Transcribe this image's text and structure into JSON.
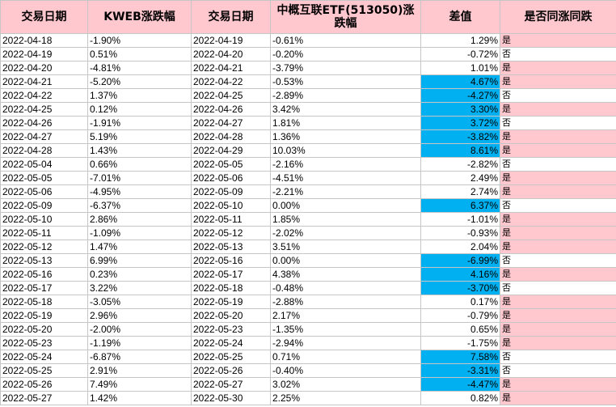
{
  "columns": [
    "交易日期",
    "KWEB涨跌幅",
    "交易日期",
    "中概互联ETF(513050)涨跌幅",
    "差值",
    "是否同涨同跌"
  ],
  "colors": {
    "header_fill": "#ffc7ce",
    "highlight_blue": "#00b0f0",
    "pink_fill": "#ffc7ce",
    "grid": "#c6c6c6"
  },
  "rows": [
    {
      "d1": "2022-04-18",
      "kweb": "-1.90%",
      "d2": "2022-04-19",
      "etf": "-0.61%",
      "diff": "1.29%",
      "same": "是",
      "hl": false
    },
    {
      "d1": "2022-04-19",
      "kweb": "0.51%",
      "d2": "2022-04-20",
      "etf": "-0.20%",
      "diff": "-0.72%",
      "same": "否",
      "hl": false
    },
    {
      "d1": "2022-04-20",
      "kweb": "-4.81%",
      "d2": "2022-04-21",
      "etf": "-3.79%",
      "diff": "1.01%",
      "same": "是",
      "hl": false
    },
    {
      "d1": "2022-04-21",
      "kweb": "-5.20%",
      "d2": "2022-04-22",
      "etf": "-0.53%",
      "diff": "4.67%",
      "same": "是",
      "hl": true
    },
    {
      "d1": "2022-04-22",
      "kweb": "1.37%",
      "d2": "2022-04-25",
      "etf": "-2.89%",
      "diff": "-4.27%",
      "same": "否",
      "hl": true
    },
    {
      "d1": "2022-04-25",
      "kweb": "0.12%",
      "d2": "2022-04-26",
      "etf": "3.42%",
      "diff": "3.30%",
      "same": "是",
      "hl": true
    },
    {
      "d1": "2022-04-26",
      "kweb": "-1.91%",
      "d2": "2022-04-27",
      "etf": "1.81%",
      "diff": "3.72%",
      "same": "否",
      "hl": true
    },
    {
      "d1": "2022-04-27",
      "kweb": "5.19%",
      "d2": "2022-04-28",
      "etf": "1.36%",
      "diff": "-3.82%",
      "same": "是",
      "hl": true
    },
    {
      "d1": "2022-04-28",
      "kweb": "1.43%",
      "d2": "2022-04-29",
      "etf": "10.03%",
      "diff": "8.61%",
      "same": "是",
      "hl": true
    },
    {
      "d1": "2022-05-04",
      "kweb": "0.66%",
      "d2": "2022-05-05",
      "etf": "-2.16%",
      "diff": "-2.82%",
      "same": "否",
      "hl": false
    },
    {
      "d1": "2022-05-05",
      "kweb": "-7.01%",
      "d2": "2022-05-06",
      "etf": "-4.51%",
      "diff": "2.49%",
      "same": "是",
      "hl": false
    },
    {
      "d1": "2022-05-06",
      "kweb": "-4.95%",
      "d2": "2022-05-09",
      "etf": "-2.21%",
      "diff": "2.74%",
      "same": "是",
      "hl": false
    },
    {
      "d1": "2022-05-09",
      "kweb": "-6.37%",
      "d2": "2022-05-10",
      "etf": "0.00%",
      "diff": "6.37%",
      "same": "否",
      "hl": true
    },
    {
      "d1": "2022-05-10",
      "kweb": "2.86%",
      "d2": "2022-05-11",
      "etf": "1.85%",
      "diff": "-1.01%",
      "same": "是",
      "hl": false
    },
    {
      "d1": "2022-05-11",
      "kweb": "-1.09%",
      "d2": "2022-05-12",
      "etf": "-2.02%",
      "diff": "-0.93%",
      "same": "是",
      "hl": false
    },
    {
      "d1": "2022-05-12",
      "kweb": "1.47%",
      "d2": "2022-05-13",
      "etf": "3.51%",
      "diff": "2.04%",
      "same": "是",
      "hl": false
    },
    {
      "d1": "2022-05-13",
      "kweb": "6.99%",
      "d2": "2022-05-16",
      "etf": "0.00%",
      "diff": "-6.99%",
      "same": "否",
      "hl": true
    },
    {
      "d1": "2022-05-16",
      "kweb": "0.23%",
      "d2": "2022-05-17",
      "etf": "4.38%",
      "diff": "4.16%",
      "same": "是",
      "hl": true
    },
    {
      "d1": "2022-05-17",
      "kweb": "3.22%",
      "d2": "2022-05-18",
      "etf": "-0.48%",
      "diff": "-3.70%",
      "same": "否",
      "hl": true
    },
    {
      "d1": "2022-05-18",
      "kweb": "-3.05%",
      "d2": "2022-05-19",
      "etf": "-2.88%",
      "diff": "0.17%",
      "same": "是",
      "hl": false
    },
    {
      "d1": "2022-05-19",
      "kweb": "2.96%",
      "d2": "2022-05-20",
      "etf": "2.17%",
      "diff": "-0.79%",
      "same": "是",
      "hl": false
    },
    {
      "d1": "2022-05-20",
      "kweb": "-2.00%",
      "d2": "2022-05-23",
      "etf": "-1.35%",
      "diff": "0.65%",
      "same": "是",
      "hl": false
    },
    {
      "d1": "2022-05-23",
      "kweb": "-1.19%",
      "d2": "2022-05-24",
      "etf": "-2.94%",
      "diff": "-1.75%",
      "same": "是",
      "hl": false
    },
    {
      "d1": "2022-05-24",
      "kweb": "-6.87%",
      "d2": "2022-05-25",
      "etf": "0.71%",
      "diff": "7.58%",
      "same": "否",
      "hl": true
    },
    {
      "d1": "2022-05-25",
      "kweb": "2.91%",
      "d2": "2022-05-26",
      "etf": "-0.40%",
      "diff": "-3.31%",
      "same": "否",
      "hl": true
    },
    {
      "d1": "2022-05-26",
      "kweb": "7.49%",
      "d2": "2022-05-27",
      "etf": "3.02%",
      "diff": "-4.47%",
      "same": "是",
      "hl": true
    },
    {
      "d1": "2022-05-27",
      "kweb": "1.42%",
      "d2": "2022-05-30",
      "etf": "2.25%",
      "diff": "0.82%",
      "same": "是",
      "hl": false
    }
  ]
}
